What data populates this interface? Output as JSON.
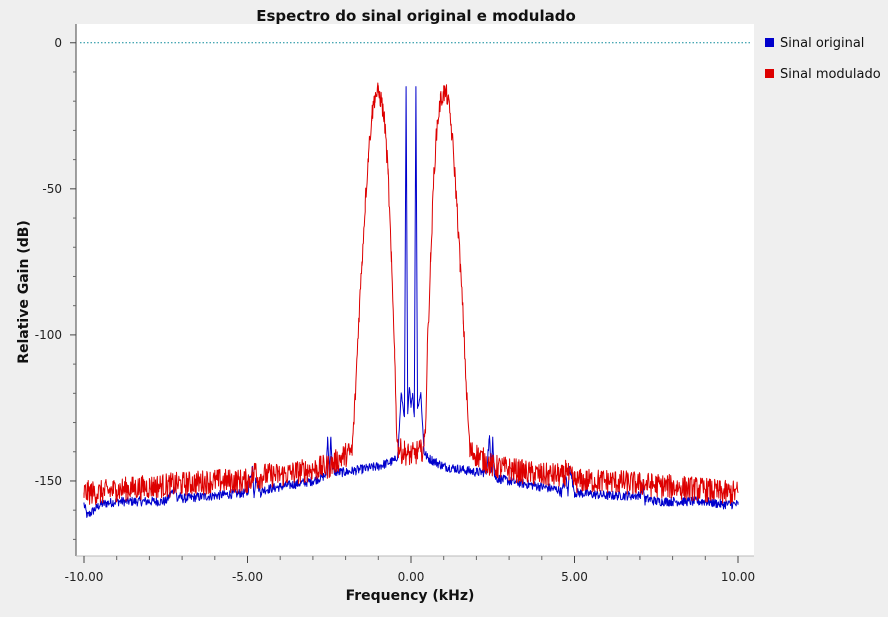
{
  "chart_data": {
    "type": "line",
    "title": "Espectro do sinal original e modulado",
    "xlabel": "Frequency (kHz)",
    "ylabel": "Relative Gain (dB)",
    "xlim": [
      -10,
      10
    ],
    "ylim": [
      -175,
      3
    ],
    "x_ticks": [
      -10,
      -5,
      0,
      5,
      10
    ],
    "x_tick_labels": [
      "-10.00",
      "-5.00",
      "0.00",
      "5.00",
      "10.00"
    ],
    "y_ticks": [
      0,
      -50,
      -100,
      -150
    ],
    "y_tick_labels": [
      "0",
      "-50",
      "-100",
      "-150"
    ],
    "grid": false,
    "legend_position": "right",
    "reference_line": {
      "y": 0,
      "color": "#0a8a9a",
      "style": "dotted"
    },
    "series": [
      {
        "name": "Sinal original",
        "color": "#0000cc",
        "x": [
          -10.0,
          -9.9,
          -9.5,
          -9.0,
          -8.0,
          -7.5,
          -7.2,
          -7.15,
          -7.1,
          -7.0,
          -6.0,
          -5.0,
          -4.85,
          -4.8,
          -4.75,
          -4.6,
          -4.5,
          -4.0,
          -3.0,
          -2.6,
          -2.55,
          -2.5,
          -2.45,
          -2.4,
          -2.3,
          -2.0,
          -1.5,
          -1.0,
          -0.5,
          -0.4,
          -0.3,
          -0.2,
          -0.15,
          -0.1,
          -0.05,
          0.0,
          0.05,
          0.1,
          0.15,
          0.2,
          0.3,
          0.4,
          0.5,
          1.0,
          1.5,
          2.0,
          2.3,
          2.4,
          2.45,
          2.5,
          2.55,
          2.6,
          3.0,
          4.0,
          4.5,
          4.6,
          4.75,
          4.8,
          4.85,
          5.0,
          6.0,
          7.0,
          7.1,
          7.15,
          7.2,
          7.5,
          8.0,
          9.0,
          9.5,
          10.0
        ],
        "y": [
          -158,
          -162,
          -158,
          -157,
          -157,
          -157,
          -152,
          -157,
          -155,
          -156,
          -155,
          -154,
          -145,
          -155,
          -149,
          -154,
          -153,
          -152,
          -150,
          -148,
          -135,
          -147,
          -135,
          -146,
          -147,
          -147,
          -146,
          -145,
          -143,
          -141,
          -120,
          -128,
          -15,
          -127,
          -118,
          -124,
          -120,
          -128,
          -15,
          -125,
          -120,
          -140,
          -142,
          -145,
          -146,
          -147,
          -147,
          -135,
          -147,
          -135,
          -148,
          -149,
          -150,
          -152,
          -153,
          -154,
          -149,
          -155,
          -145,
          -154,
          -155,
          -155,
          -151,
          -157,
          -156,
          -157,
          -157,
          -157,
          -158,
          -158
        ]
      },
      {
        "name": "Sinal modulado",
        "color": "#dd0000",
        "x": [
          -10.0,
          -9.5,
          -9.0,
          -8.0,
          -7.0,
          -6.0,
          -5.0,
          -4.8,
          -4.75,
          -4.7,
          -4.5,
          -4.0,
          -3.0,
          -2.5,
          -2.0,
          -1.8,
          -1.7,
          -1.6,
          -1.5,
          -1.4,
          -1.3,
          -1.2,
          -1.1,
          -1.0,
          -0.9,
          -0.8,
          -0.7,
          -0.6,
          -0.5,
          -0.45,
          -0.4,
          -0.3,
          -0.2,
          -0.1,
          0.0,
          0.1,
          0.2,
          0.3,
          0.4,
          0.45,
          0.5,
          0.6,
          0.7,
          0.8,
          0.9,
          1.0,
          1.1,
          1.2,
          1.3,
          1.4,
          1.5,
          1.6,
          1.7,
          1.8,
          2.0,
          2.5,
          3.0,
          4.0,
          4.5,
          4.7,
          4.75,
          4.8,
          5.0,
          6.0,
          7.0,
          8.0,
          9.0,
          9.5,
          10.0
        ],
        "y": [
          -154,
          -154,
          -153,
          -152,
          -151,
          -150,
          -150,
          -148,
          -144,
          -149,
          -148,
          -148,
          -146,
          -145,
          -141,
          -140,
          -120,
          -95,
          -75,
          -55,
          -38,
          -25,
          -18,
          -17,
          -20,
          -28,
          -45,
          -75,
          -105,
          -130,
          -138,
          -140,
          -140,
          -141,
          -141,
          -141,
          -140,
          -140,
          -138,
          -130,
          -105,
          -75,
          -45,
          -28,
          -20,
          -17,
          -18,
          -25,
          -38,
          -55,
          -75,
          -95,
          -120,
          -140,
          -141,
          -145,
          -146,
          -148,
          -148,
          -149,
          -144,
          -148,
          -150,
          -150,
          -151,
          -152,
          -153,
          -154,
          -154
        ]
      }
    ]
  }
}
